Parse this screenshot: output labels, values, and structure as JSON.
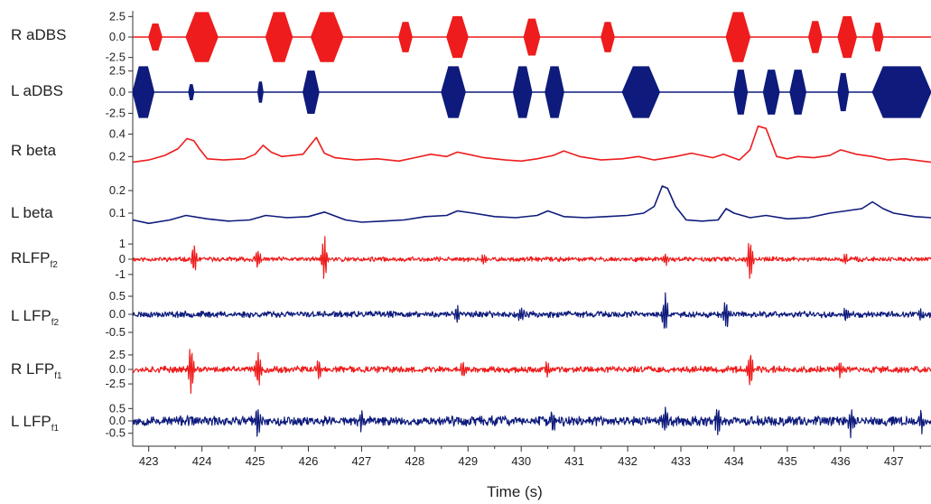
{
  "colors": {
    "right": "#ee1c1c",
    "left": "#0e1b7c",
    "axis": "#333333"
  },
  "chart_data": {
    "type": "line",
    "title": "",
    "xlabel": "Time (s)",
    "xlim": [
      422.7,
      437.7
    ],
    "xticks": [
      423,
      424,
      425,
      426,
      427,
      428,
      429,
      430,
      431,
      432,
      433,
      434,
      435,
      436,
      437
    ],
    "xtick_labels": [
      "423",
      "424",
      "425",
      "426",
      "427",
      "428",
      "429",
      "430",
      "431",
      "432",
      "433",
      "434",
      "435",
      "436",
      "437"
    ],
    "grid": false,
    "legend": "none",
    "panels": [
      {
        "id": "r-adbs",
        "label": "R aDBS",
        "label_main": "R aDBS",
        "label_sub": "",
        "color_key": "right",
        "kind": "bursts",
        "ylim": [
          -3.2,
          3.2
        ],
        "yticks": [
          2.5,
          0.0,
          -2.5
        ],
        "ytick_labels": [
          "2.5",
          "0.0",
          "-2.5"
        ],
        "bursts": [
          [
            423.0,
            423.25,
            1.6
          ],
          [
            423.7,
            424.3,
            3.0
          ],
          [
            425.2,
            425.7,
            3.0
          ],
          [
            426.05,
            426.65,
            3.0
          ],
          [
            427.7,
            427.95,
            1.8
          ],
          [
            428.6,
            429.0,
            2.5
          ],
          [
            430.05,
            430.35,
            2.2
          ],
          [
            431.5,
            431.75,
            1.8
          ],
          [
            433.85,
            434.3,
            3.0
          ],
          [
            435.4,
            435.65,
            1.9
          ],
          [
            435.95,
            436.3,
            2.5
          ],
          [
            436.6,
            436.8,
            1.7
          ]
        ]
      },
      {
        "id": "l-adbs",
        "label": "L aDBS",
        "label_main": "L aDBS",
        "label_sub": "",
        "color_key": "left",
        "kind": "bursts",
        "ylim": [
          -3.2,
          3.2
        ],
        "yticks": [
          2.5,
          0.0,
          -2.5
        ],
        "ytick_labels": [
          "2.5",
          "0.0",
          "-2.5"
        ],
        "bursts": [
          [
            422.7,
            423.1,
            3.0
          ],
          [
            423.75,
            423.85,
            0.9
          ],
          [
            425.05,
            425.15,
            1.2
          ],
          [
            425.9,
            426.2,
            2.5
          ],
          [
            428.5,
            428.95,
            3.0
          ],
          [
            429.85,
            430.2,
            3.0
          ],
          [
            430.45,
            430.8,
            3.0
          ],
          [
            431.9,
            432.6,
            3.0
          ],
          [
            434.0,
            434.25,
            2.6
          ],
          [
            434.55,
            434.85,
            2.6
          ],
          [
            435.05,
            435.35,
            2.6
          ],
          [
            435.95,
            436.15,
            2.2
          ],
          [
            436.6,
            437.7,
            3.0
          ]
        ]
      },
      {
        "id": "r-beta",
        "label": "R beta",
        "label_main": "R beta",
        "label_sub": "",
        "color_key": "right",
        "kind": "line",
        "ylim": [
          0.05,
          0.5
        ],
        "yticks": [
          0.4,
          0.2
        ],
        "ytick_labels": [
          "0.4",
          "0.2"
        ],
        "x": [
          422.7,
          423.0,
          423.3,
          423.55,
          423.72,
          423.85,
          423.95,
          424.1,
          424.4,
          424.8,
          425.0,
          425.15,
          425.3,
          425.5,
          425.9,
          426.05,
          426.15,
          426.3,
          426.5,
          426.9,
          427.3,
          427.7,
          428.0,
          428.3,
          428.6,
          428.8,
          429.0,
          429.3,
          429.7,
          430.0,
          430.3,
          430.6,
          430.8,
          431.1,
          431.5,
          431.9,
          432.2,
          432.5,
          432.9,
          433.2,
          433.6,
          433.8,
          434.1,
          434.3,
          434.45,
          434.6,
          434.8,
          435.0,
          435.2,
          435.5,
          435.8,
          436.0,
          436.3,
          436.6,
          436.9,
          437.2,
          437.7
        ],
        "y": [
          0.15,
          0.17,
          0.21,
          0.27,
          0.36,
          0.34,
          0.27,
          0.18,
          0.17,
          0.18,
          0.22,
          0.3,
          0.24,
          0.2,
          0.22,
          0.31,
          0.37,
          0.23,
          0.19,
          0.17,
          0.18,
          0.16,
          0.19,
          0.22,
          0.2,
          0.24,
          0.22,
          0.19,
          0.17,
          0.16,
          0.18,
          0.21,
          0.25,
          0.2,
          0.17,
          0.18,
          0.2,
          0.17,
          0.2,
          0.23,
          0.19,
          0.22,
          0.17,
          0.26,
          0.47,
          0.45,
          0.2,
          0.18,
          0.2,
          0.19,
          0.21,
          0.26,
          0.22,
          0.2,
          0.17,
          0.18,
          0.15
        ]
      },
      {
        "id": "l-beta",
        "label": "L beta",
        "label_main": "L beta",
        "label_sub": "",
        "color_key": "left",
        "kind": "line",
        "ylim": [
          0.02,
          0.26
        ],
        "yticks": [
          0.2,
          0.1
        ],
        "ytick_labels": [
          "0.2",
          "0.1"
        ],
        "x": [
          422.7,
          423.0,
          423.4,
          423.7,
          424.1,
          424.5,
          424.9,
          425.2,
          425.6,
          426.0,
          426.3,
          426.7,
          427.0,
          427.4,
          427.8,
          428.2,
          428.6,
          428.8,
          429.1,
          429.5,
          429.9,
          430.3,
          430.5,
          430.8,
          431.2,
          431.6,
          432.0,
          432.3,
          432.5,
          432.65,
          432.75,
          432.9,
          433.1,
          433.4,
          433.7,
          433.85,
          434.0,
          434.3,
          434.6,
          435.0,
          435.4,
          435.8,
          436.1,
          436.4,
          436.6,
          436.8,
          437.0,
          437.4,
          437.7
        ],
        "y": [
          0.07,
          0.055,
          0.07,
          0.09,
          0.075,
          0.065,
          0.07,
          0.09,
          0.08,
          0.085,
          0.105,
          0.07,
          0.06,
          0.065,
          0.07,
          0.085,
          0.09,
          0.11,
          0.1,
          0.085,
          0.08,
          0.09,
          0.11,
          0.085,
          0.08,
          0.085,
          0.09,
          0.1,
          0.13,
          0.22,
          0.21,
          0.13,
          0.07,
          0.065,
          0.07,
          0.12,
          0.1,
          0.08,
          0.09,
          0.075,
          0.08,
          0.1,
          0.11,
          0.12,
          0.15,
          0.12,
          0.1,
          0.085,
          0.08
        ]
      },
      {
        "id": "rlfp-f2",
        "label": "RLFPf2",
        "label_main": "RLFP",
        "label_sub": "f2",
        "color_key": "right",
        "kind": "noise",
        "ylim": [
          -1.6,
          1.6
        ],
        "noise_amp": 0.12,
        "noise_seed": 11,
        "yticks": [
          1,
          0,
          -1
        ],
        "ytick_labels": [
          "1",
          "0",
          "-1"
        ],
        "spikes": [
          [
            423.85,
            1.0
          ],
          [
            425.05,
            0.6
          ],
          [
            426.3,
            1.45
          ],
          [
            432.7,
            0.4
          ],
          [
            434.3,
            1.45
          ],
          [
            429.3,
            0.35
          ],
          [
            436.1,
            0.35
          ]
        ]
      },
      {
        "id": "llfp-f2",
        "label": "L LFPf2",
        "label_main": "L LFP",
        "label_sub": "f2",
        "color_key": "left",
        "kind": "noise",
        "ylim": [
          -0.75,
          0.75
        ],
        "noise_amp": 0.07,
        "noise_seed": 23,
        "yticks": [
          0.5,
          0.0,
          -0.5
        ],
        "ytick_labels": [
          "0.5",
          "0.0",
          "-0.5"
        ],
        "spikes": [
          [
            428.8,
            0.25
          ],
          [
            430.0,
            0.22
          ],
          [
            432.7,
            0.55
          ],
          [
            433.85,
            0.38
          ],
          [
            436.1,
            0.22
          ],
          [
            437.5,
            0.2
          ]
        ]
      },
      {
        "id": "rlfp-f1",
        "label": "R LFPf1",
        "label_main": "R LFP",
        "label_sub": "f1",
        "color_key": "right",
        "kind": "noise",
        "ylim": [
          -4.2,
          4.2
        ],
        "noise_amp": 0.45,
        "noise_seed": 37,
        "yticks": [
          2.5,
          0.0,
          -2.5
        ],
        "ytick_labels": [
          "2.5",
          "0.0",
          "-2.5"
        ],
        "spikes": [
          [
            423.8,
            3.8
          ],
          [
            425.05,
            3.2
          ],
          [
            426.2,
            1.6
          ],
          [
            428.9,
            1.2
          ],
          [
            430.5,
            1.3
          ],
          [
            434.3,
            3.3
          ],
          [
            436.0,
            1.2
          ]
        ]
      },
      {
        "id": "llfp-f1",
        "label": "L LFPf1",
        "label_main": "L LFP",
        "label_sub": "f1",
        "color_key": "left",
        "kind": "noise",
        "ylim": [
          -0.95,
          0.95
        ],
        "noise_amp": 0.16,
        "noise_seed": 53,
        "yticks": [
          0.5,
          0.0,
          -0.5
        ],
        "ytick_labels": [
          "0.5",
          "0.0",
          "-0.5"
        ],
        "spikes": [
          [
            425.05,
            0.7
          ],
          [
            427.0,
            0.4
          ],
          [
            430.6,
            0.45
          ],
          [
            432.7,
            0.55
          ],
          [
            433.7,
            0.5
          ],
          [
            436.2,
            0.5
          ],
          [
            437.5,
            0.45
          ]
        ]
      }
    ]
  }
}
